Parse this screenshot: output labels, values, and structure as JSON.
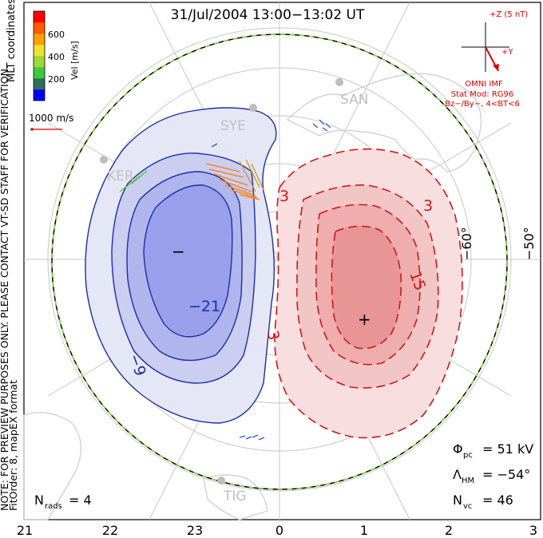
{
  "header": {
    "title": "31/Jul/2004 13:00−13:02 UT",
    "coords": "MLT coordinates"
  },
  "colorbar": {
    "unit_label": "Vel [m/s]",
    "ticks": [
      "600",
      "400",
      "200"
    ],
    "colors": [
      "#0000ff",
      "#2e6e5a",
      "#3cc93c",
      "#9fd63a",
      "#f0e030",
      "#ffa000",
      "#ff5a00",
      "#ff0000"
    ]
  },
  "scale_vector": {
    "label": "1000 m/s"
  },
  "notes": {
    "preview": "NOTE: FOR PREVIEW PURPOSES ONLY. PLEASE CONTACT VT-SD STAFF FOR VERIFICATION.",
    "fit": "FitOrder: 8, mapEX format"
  },
  "imf": {
    "bz_label": "+Z (5 nT)",
    "by_label": "+Y",
    "source": "OMNI IMF",
    "model": "Stat Mod: RG96",
    "condition": "Bz−/By−, 4<BT<6"
  },
  "stations": [
    {
      "code": "SAN",
      "label": "SAN"
    },
    {
      "code": "SYE",
      "label": "SYE"
    },
    {
      "code": "KER",
      "label": "KER"
    },
    {
      "code": "TIG",
      "label": "TIG"
    }
  ],
  "latitude_labels": [
    "−60°",
    "−50°"
  ],
  "contour_labels": {
    "negative": [
      "−21",
      "−9"
    ],
    "positive": [
      "3",
      "3",
      "3",
      "15"
    ]
  },
  "markers": {
    "min": "−",
    "max": "+"
  },
  "stats": {
    "phi_symbol": "Φ",
    "phi_sub": "pc",
    "phi_value": "= 51 kV",
    "lambda_symbol": "Λ",
    "lambda_sub": "HM",
    "lambda_value": "= −54°",
    "nvc_symbol": "N",
    "nvc_sub": "vc",
    "nvc_value": "= 46",
    "nrads_symbol": "N",
    "nrads_sub": "rads",
    "nrads_value": "= 4"
  },
  "mlt_axis": [
    "21",
    "22",
    "23",
    "0",
    "1",
    "2",
    "3"
  ],
  "colors": {
    "negative": "#1a2fa8",
    "negative_fill": "#7d85e8",
    "positive": "#d01818",
    "positive_fill": "#ee8080",
    "imf": "#e00000",
    "boundary": "#7fdf3a"
  }
}
